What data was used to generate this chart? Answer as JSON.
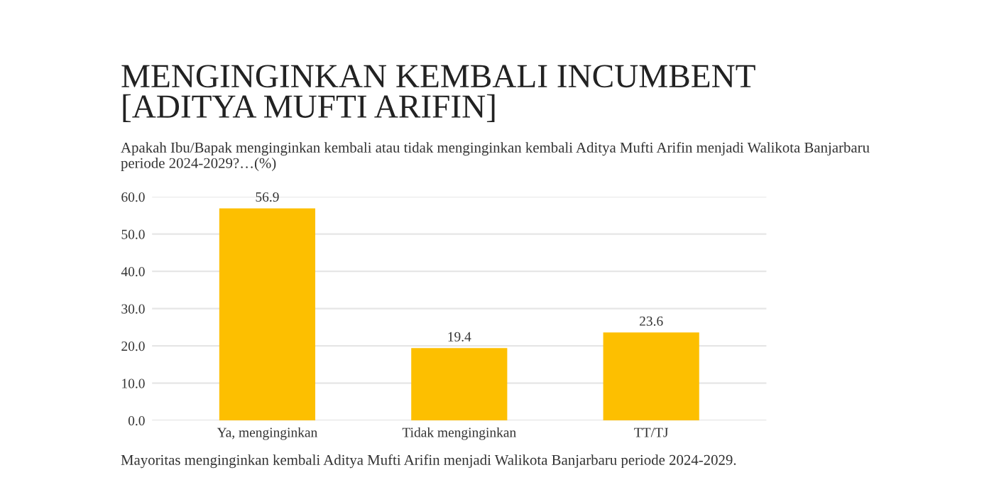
{
  "chart_data": {
    "type": "bar",
    "title": "MENGINGINKAN KEMBALI INCUMBENT\n[ADITYA MUFTI ARIFIN]",
    "subtitle": "Apakah Ibu/Bapak menginginkan kembali atau tidak menginginkan kembali Aditya Mufti Arifin menjadi Walikota Banjarbaru\nperiode 2024-2029?…(%)",
    "categories": [
      "Ya, menginginkan",
      "Tidak menginginkan",
      "TT/TJ"
    ],
    "values": [
      56.9,
      19.4,
      23.6
    ],
    "color": "#fdbf00",
    "data_labels": true,
    "ylim": [
      0,
      60
    ],
    "yticks": [
      {
        "value": 0,
        "label": "0.0"
      },
      {
        "value": 10,
        "label": "10.0"
      },
      {
        "value": 20,
        "label": "20.0"
      },
      {
        "value": 30,
        "label": "30.0"
      },
      {
        "value": 40,
        "label": "40.0"
      },
      {
        "value": 50,
        "label": "50.0"
      },
      {
        "value": 60,
        "label": "60.0"
      }
    ],
    "grid": "y",
    "annotations": [
      "Mayoritas menginginkan kembali Aditya Mufti Arifin menjadi Walikota Banjarbaru periode 2024-2029."
    ]
  }
}
